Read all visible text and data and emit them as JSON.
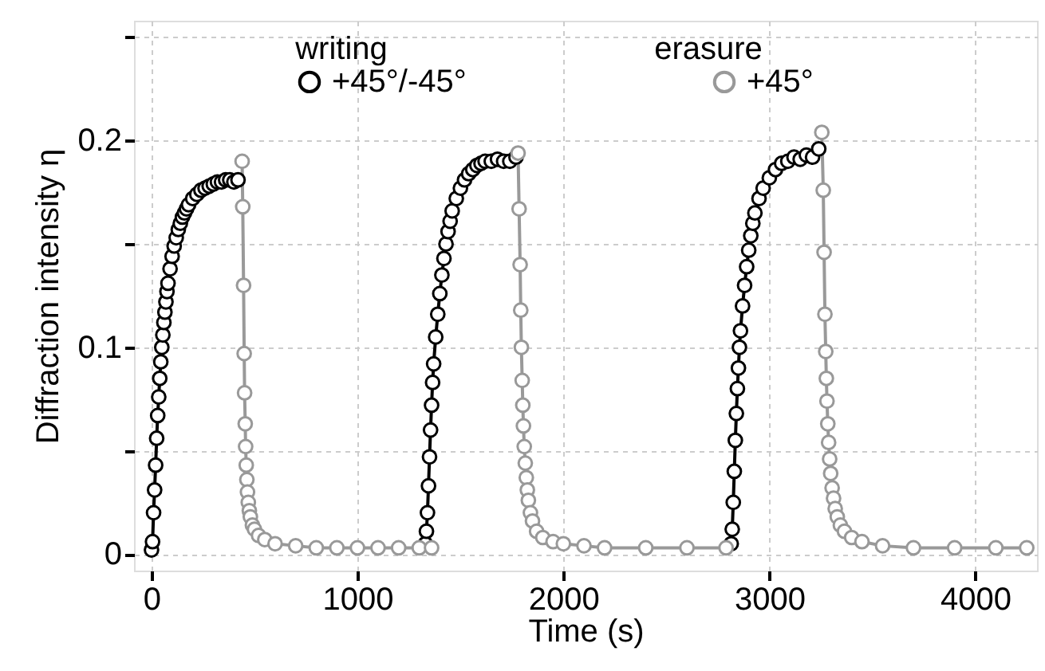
{
  "chart_data": {
    "type": "line",
    "xlabel": "Time (s)",
    "ylabel": "Diffraction intensity η",
    "xlim": [
      -85,
      4300
    ],
    "ylim": [
      -0.008,
      0.258
    ],
    "xticks": [
      0,
      1000,
      2000,
      3000,
      4000
    ],
    "yticks": [
      0,
      {
        "value": 0.05,
        "label": null
      },
      0.1,
      {
        "value": 0.15,
        "label": null
      },
      0.2,
      {
        "value": 0.25,
        "label": null
      }
    ],
    "grid": true,
    "legend": "top",
    "marker": "circle",
    "line_style": "solid",
    "annotations": [
      "writing",
      "erasure"
    ],
    "series": [
      {
        "name": "+45°/-45°",
        "color": "#000000",
        "x": [
          0,
          5,
          10,
          15,
          20,
          25,
          30,
          35,
          40,
          45,
          50,
          55,
          60,
          65,
          70,
          75,
          80,
          90,
          100,
          110,
          120,
          130,
          140,
          150,
          160,
          170,
          180,
          200,
          220,
          240,
          260,
          280,
          300,
          320,
          340,
          360,
          380,
          400,
          420,
          null,
          1330,
          1335,
          1340,
          1345,
          1350,
          1355,
          1360,
          1365,
          1370,
          1380,
          1390,
          1400,
          1410,
          1420,
          1430,
          1440,
          1450,
          1460,
          1480,
          1500,
          1520,
          1540,
          1560,
          1580,
          1600,
          1620,
          1650,
          1680,
          1710,
          1740,
          1770,
          null,
          2815,
          2820,
          2825,
          2830,
          2835,
          2840,
          2845,
          2850,
          2855,
          2860,
          2870,
          2880,
          2890,
          2900,
          2910,
          2920,
          2930,
          2950,
          2970,
          3000,
          3030,
          3060,
          3090,
          3120,
          3150,
          3180,
          3210,
          3240
        ],
        "values": [
          0.002,
          0.006,
          0.02,
          0.031,
          0.043,
          0.056,
          0.067,
          0.076,
          0.085,
          0.093,
          0.1,
          0.106,
          0.112,
          0.117,
          0.122,
          0.127,
          0.131,
          0.138,
          0.144,
          0.149,
          0.153,
          0.157,
          0.16,
          0.163,
          0.165,
          0.167,
          0.169,
          0.172,
          0.174,
          0.176,
          0.177,
          0.178,
          0.179,
          0.18,
          0.18,
          0.181,
          0.181,
          0.18,
          0.181,
          null,
          0.005,
          0.011,
          0.02,
          0.033,
          0.047,
          0.06,
          0.072,
          0.083,
          0.092,
          0.105,
          0.116,
          0.126,
          0.135,
          0.143,
          0.15,
          0.156,
          0.161,
          0.166,
          0.172,
          0.177,
          0.181,
          0.184,
          0.186,
          0.188,
          0.189,
          0.19,
          0.19,
          0.191,
          0.19,
          0.19,
          0.192,
          null,
          0.005,
          0.012,
          0.025,
          0.04,
          0.055,
          0.068,
          0.08,
          0.09,
          0.1,
          0.108,
          0.12,
          0.13,
          0.139,
          0.147,
          0.154,
          0.16,
          0.165,
          0.172,
          0.177,
          0.182,
          0.186,
          0.189,
          0.19,
          0.192,
          0.191,
          0.193,
          0.192,
          0.196
        ]
      },
      {
        "name": "+45°",
        "color": "#999999",
        "x": [
          440,
          443,
          447,
          450,
          452,
          455,
          457,
          460,
          463,
          466,
          470,
          475,
          480,
          490,
          500,
          520,
          550,
          600,
          700,
          800,
          900,
          1000,
          1100,
          1200,
          1300,
          1360,
          null,
          1780,
          1785,
          1790,
          1793,
          1796,
          1800,
          1803,
          1806,
          1810,
          1815,
          1820,
          1825,
          1830,
          1840,
          1850,
          1870,
          1900,
          1950,
          2000,
          2100,
          2200,
          2400,
          2600,
          2790,
          null,
          3255,
          3262,
          3266,
          3270,
          3274,
          3277,
          3280,
          3284,
          3288,
          3293,
          3298,
          3305,
          3312,
          3320,
          3330,
          3345,
          3365,
          3400,
          3450,
          3550,
          3700,
          3900,
          4100,
          4250
        ],
        "values": [
          0.19,
          0.168,
          0.13,
          0.097,
          0.078,
          0.063,
          0.052,
          0.043,
          0.036,
          0.03,
          0.025,
          0.021,
          0.018,
          0.014,
          0.012,
          0.009,
          0.007,
          0.005,
          0.004,
          0.003,
          0.003,
          0.003,
          0.003,
          0.003,
          0.003,
          0.003,
          null,
          0.194,
          0.167,
          0.14,
          0.118,
          0.1,
          0.084,
          0.072,
          0.062,
          0.052,
          0.044,
          0.037,
          0.031,
          0.026,
          0.02,
          0.016,
          0.011,
          0.008,
          0.006,
          0.005,
          0.004,
          0.003,
          0.003,
          0.003,
          0.003,
          null,
          0.204,
          0.176,
          0.146,
          0.116,
          0.098,
          0.085,
          0.074,
          0.063,
          0.054,
          0.046,
          0.039,
          0.032,
          0.027,
          0.022,
          0.018,
          0.014,
          0.011,
          0.008,
          0.006,
          0.004,
          0.003,
          0.003,
          0.003,
          0.003
        ]
      }
    ]
  }
}
